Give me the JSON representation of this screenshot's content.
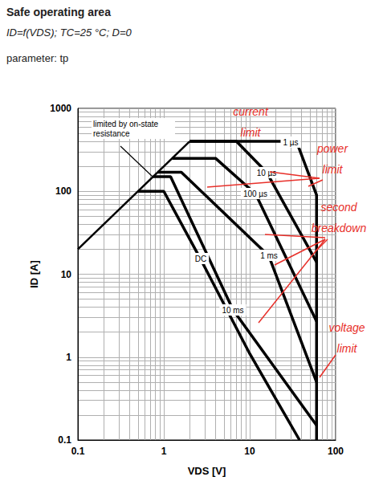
{
  "chart_data": {
    "type": "line",
    "title": "Safe operating area",
    "subtitle": [
      "ID=f(VDS); TC=25 °C; D=0",
      "parameter: tp"
    ],
    "x_label": "VDS [V]",
    "y_label": "ID [A]",
    "log": true,
    "grid": true,
    "xlim": [
      0.1,
      100
    ],
    "ylim": [
      0.1,
      1000
    ],
    "xticks": [
      0.1,
      1,
      10,
      100
    ],
    "yticks": [
      0.1,
      1,
      10,
      100,
      1000
    ],
    "series": [
      {
        "name": "limited by on-state resistance",
        "color": "#000000",
        "x": [
          0.1,
          2
        ],
        "values": [
          20,
          400
        ]
      },
      {
        "name": "1 µs",
        "color": "#000000",
        "x": [
          2,
          35,
          60,
          60
        ],
        "values": [
          400,
          400,
          90,
          0.1
        ]
      },
      {
        "name": "10 µs",
        "color": "#000000",
        "x": [
          2,
          7,
          15.7,
          60
        ],
        "values": [
          400,
          400,
          170,
          14
        ]
      },
      {
        "name": "100 µs",
        "color": "#000000",
        "x": [
          1.25,
          4,
          11.7,
          60
        ],
        "values": [
          250,
          250,
          93,
          2.7
        ]
      },
      {
        "name": "1 ms",
        "color": "#000000",
        "x": [
          0.85,
          1.6,
          16.7,
          60
        ],
        "values": [
          170,
          170,
          16.6,
          0.5
        ]
      },
      {
        "name": "10 ms",
        "color": "#000000",
        "x": [
          0.75,
          1.2,
          6.4,
          60
        ],
        "values": [
          150,
          150,
          3.7,
          0.15
        ]
      },
      {
        "name": "DC",
        "color": "#000000",
        "x": [
          0.5,
          1,
          2.7,
          10,
          38
        ],
        "values": [
          100,
          100,
          15,
          1.1,
          0.1
        ]
      }
    ],
    "annotations": [
      {
        "text": "current limit",
        "color": "#e8302a"
      },
      {
        "text": "power limit",
        "color": "#e8302a"
      },
      {
        "text": "second breakdown",
        "color": "#e8302a"
      },
      {
        "text": "voltage limit",
        "color": "#e8302a"
      }
    ]
  }
}
